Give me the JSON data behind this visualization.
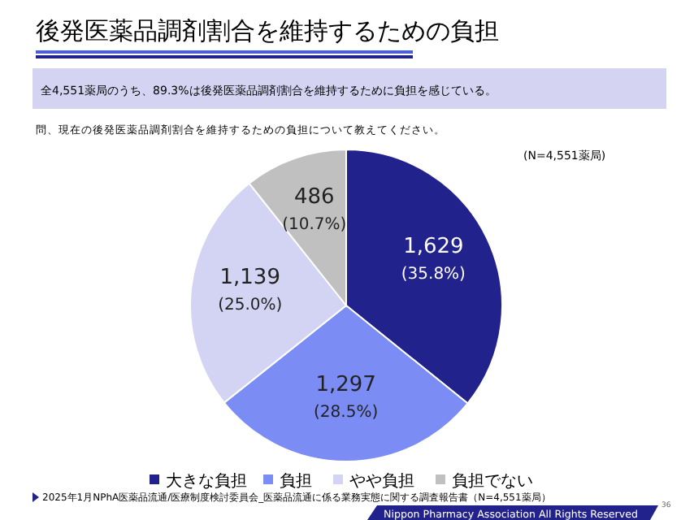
{
  "chart_data": {
    "type": "pie",
    "title": "後発医薬品調剤割合を維持するための負担",
    "subtitle": "全4,551薬局のうち、89.3%は後発医薬品調剤割合を維持するために負担を感じている。",
    "annotations": [
      "問、現在の後発医薬品調剤割合を維持するための負担について教えてください。",
      "(N=4,551薬局)",
      "2025年1月NPhA医薬品流通/医療制度検討委員会_医薬品流通に係る業務実態に関する調査報告書（N=4,551薬局）",
      "Nippon Pharmacy Association All Rights Reserved",
      "36"
    ],
    "categories": [
      "大きな負担",
      "負担",
      "やや負担",
      "負担でない"
    ],
    "values": [
      1629,
      1297,
      1139,
      486
    ],
    "value_labels": [
      "1,629\n(35.8%)",
      "1,297\n(28.5%)",
      "1,139\n(25.0%)",
      "486\n(10.7%)"
    ],
    "colors": [
      "#22228c",
      "#7b8cf5",
      "#d3d3f3",
      "#c0c0c0"
    ],
    "legend": "bottom"
  }
}
